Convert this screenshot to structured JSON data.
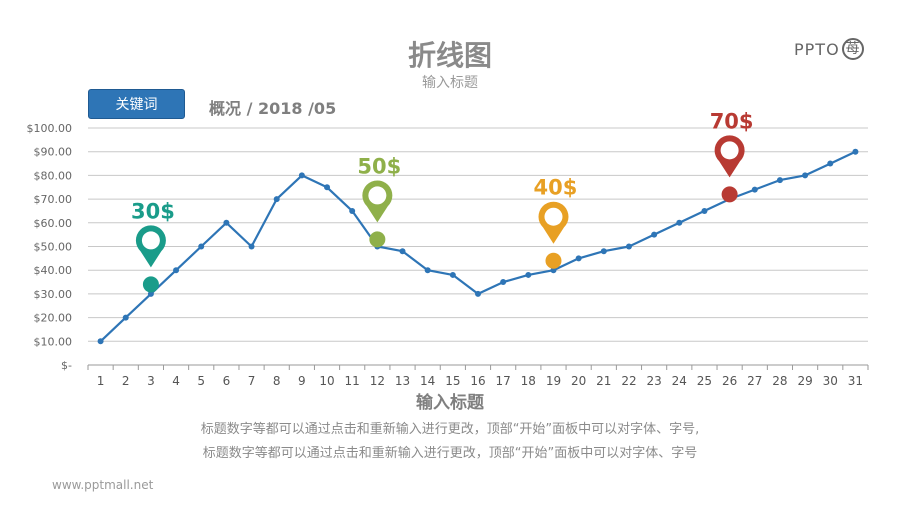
{
  "title": "折线图",
  "subtitle": "输入标题",
  "logo": {
    "text": "PPTO",
    "mark": "苺"
  },
  "keyword_button": "关键词",
  "overview": "概况 / 2018 /05",
  "caption_lines": [
    "标题数字等都可以通过点击和重新输入进行更改，顶部“开始”面板中可以对字体、字号,",
    "标题数字等都可以通过点击和重新输入进行更改，顶部“开始”面板中可以对字体、字号"
  ],
  "website": "www.pptmall.net",
  "chart_data": {
    "type": "line",
    "title": "",
    "xlabel": "输入标题",
    "ylabel": "",
    "x": [
      1,
      2,
      3,
      4,
      5,
      6,
      7,
      8,
      9,
      10,
      11,
      12,
      13,
      14,
      15,
      16,
      17,
      18,
      19,
      20,
      21,
      22,
      23,
      24,
      25,
      26,
      27,
      28,
      29,
      30,
      31
    ],
    "values": [
      10,
      20,
      30,
      40,
      50,
      60,
      50,
      70,
      80,
      75,
      65,
      50,
      48,
      40,
      38,
      30,
      35,
      38,
      40,
      45,
      48,
      50,
      55,
      60,
      65,
      70,
      74,
      78,
      80,
      85,
      90
    ],
    "ylim": [
      0,
      100
    ],
    "yticks": [
      0,
      10,
      20,
      30,
      40,
      50,
      60,
      70,
      80,
      90,
      100
    ],
    "ytick_labels": [
      "$-",
      "$10.00",
      "$20.00",
      "$30.00",
      "$40.00",
      "$50.00",
      "$60.00",
      "$70.00",
      "$80.00",
      "$90.00",
      "$100.00"
    ],
    "grid": true,
    "line_color": "#2e75b6",
    "annotations": [
      {
        "x": 3,
        "value": 34,
        "label": "30$",
        "color": "#1a9c8a"
      },
      {
        "x": 12,
        "value": 53,
        "label": "50$",
        "color": "#8fb04a"
      },
      {
        "x": 19,
        "value": 44,
        "label": "40$",
        "color": "#e8a024"
      },
      {
        "x": 26,
        "value": 72,
        "label": "70$",
        "color": "#b83a33"
      }
    ]
  }
}
